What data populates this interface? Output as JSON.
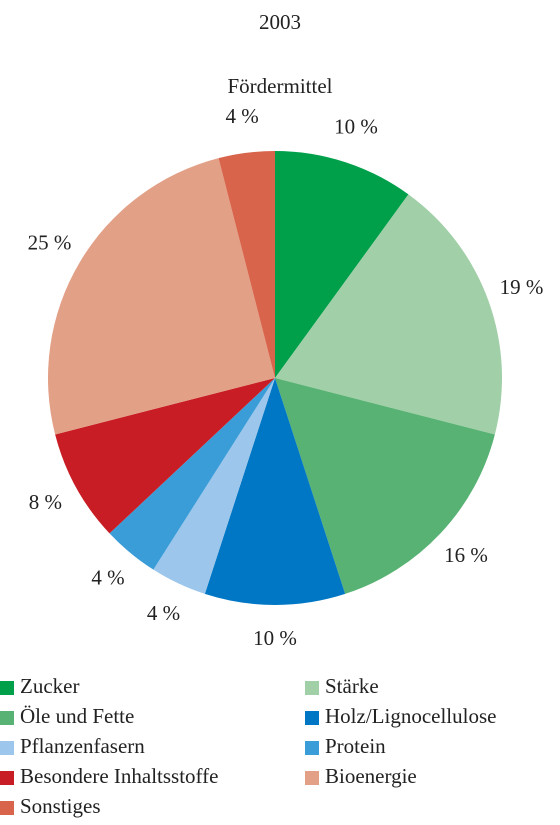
{
  "chart_data": {
    "type": "pie",
    "title": "2003",
    "subtitle": "Fördermittel",
    "categories": [
      "Zucker",
      "Stärke",
      "Öle und Fette",
      "Holz/Lignocellulose",
      "Pflanzenfasern",
      "Protein",
      "Besondere Inhaltsstoffe",
      "Bioenergie",
      "Sonstiges"
    ],
    "values": [
      10,
      19,
      16,
      10,
      4,
      4,
      8,
      25,
      4
    ],
    "value_labels": [
      "10 %",
      "19 %",
      "16 %",
      "10 %",
      "4 %",
      "4 %",
      "8 %",
      "25 %",
      "4 %"
    ],
    "colors": [
      "#00a04b",
      "#a1cfa8",
      "#58b273",
      "#0077c4",
      "#9cc6ec",
      "#3a9dd8",
      "#c81d24",
      "#e2a087",
      "#d9644c"
    ]
  }
}
